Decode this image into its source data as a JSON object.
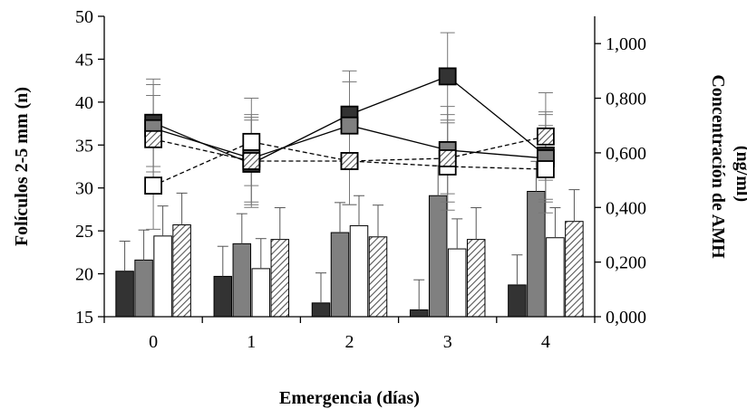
{
  "chart_data": {
    "type": "bar",
    "title": "",
    "xlabel": "Emergencia (días)",
    "ylabel": "Folículos 2-5 mm (n)",
    "y2label_line1": "Concentración de AMH",
    "y2label_line2": "(ng/ml)",
    "categories": [
      "0",
      "1",
      "2",
      "3",
      "4"
    ],
    "ylim": [
      15,
      50
    ],
    "yticks": [
      "15",
      "20",
      "25",
      "30",
      "35",
      "40",
      "45",
      "50"
    ],
    "y2lim": [
      0,
      1.1
    ],
    "y2ticks": [
      "0,000",
      "0,200",
      "0,400",
      "0,600",
      "0,800",
      "1,000"
    ],
    "grid": false,
    "legend": "none",
    "bar_series": [
      {
        "values": [
          20.3,
          19.7,
          16.6,
          15.8,
          18.7
        ],
        "errors": [
          3.5,
          3.5,
          3.5,
          3.5,
          3.5
        ],
        "fill": "#333333",
        "pattern": "solid"
      },
      {
        "values": [
          21.6,
          23.5,
          24.8,
          29.1,
          29.6
        ],
        "errors": [
          3.5,
          3.5,
          3.5,
          3.5,
          3.5
        ],
        "fill": "#808080",
        "pattern": "solid"
      },
      {
        "values": [
          24.4,
          20.6,
          25.6,
          22.9,
          24.2
        ],
        "errors": [
          3.5,
          3.5,
          3.5,
          3.5,
          3.5
        ],
        "fill": "#ffffff",
        "pattern": "solid"
      },
      {
        "values": [
          25.7,
          24.0,
          24.3,
          24.0,
          26.1
        ],
        "errors": [
          3.7,
          3.7,
          3.7,
          3.7,
          3.7
        ],
        "fill": "#ffffff",
        "pattern": "hatch"
      }
    ],
    "line_series": [
      {
        "values": [
          0.71,
          0.56,
          0.74,
          0.88,
          0.59
        ],
        "errors": [
          0.16,
          0.16,
          0.16,
          0.16,
          0.16
        ],
        "marker_fill": "#333333",
        "pattern": "solid",
        "dash": "solid"
      },
      {
        "values": [
          0.69,
          0.58,
          0.7,
          0.61,
          0.58
        ],
        "errors": [
          0.16,
          0.16,
          0.16,
          0.16,
          0.16
        ],
        "marker_fill": "#808080",
        "pattern": "solid",
        "dash": "solid"
      },
      {
        "values": [
          0.48,
          0.64,
          0.57,
          0.55,
          0.54
        ],
        "errors": [
          0.16,
          0.16,
          0.16,
          0.16,
          0.16
        ],
        "marker_fill": "#ffffff",
        "pattern": "solid",
        "dash": "dashed"
      },
      {
        "values": [
          0.65,
          0.57,
          0.57,
          0.58,
          0.66
        ],
        "errors": [
          0.16,
          0.16,
          0.16,
          0.16,
          0.16
        ],
        "marker_fill": "#ffffff",
        "pattern": "hatch",
        "dash": "dashed"
      }
    ]
  }
}
